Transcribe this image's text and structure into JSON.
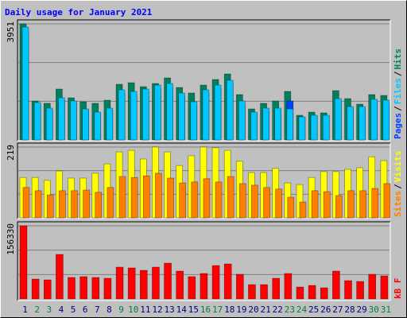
{
  "chart_data": [
    {
      "type": "bar",
      "title": "Daily usage for January 2021",
      "legend_separator": "/",
      "ylim": [
        0,
        3951
      ],
      "yticks": [
        3951
      ],
      "series": [
        {
          "name": "Hits",
          "color": "#00805c",
          "values": [
            3951,
            1326,
            1245,
            1732,
            1434,
            1299,
            1245,
            1353,
            1894,
            1948,
            1813,
            1921,
            2111,
            1786,
            1597,
            1867,
            2057,
            2246,
            1543,
            1055,
            1245,
            1326,
            1651,
            839,
            947,
            920,
            1678,
            1407,
            1218,
            1543,
            1515
          ]
        },
        {
          "name": "Files",
          "color": "#00c8ff",
          "values": [
            3843,
            1272,
            1082,
            1434,
            1326,
            1055,
            947,
            1082,
            1705,
            1651,
            1732,
            1867,
            1921,
            1597,
            1299,
            1705,
            1867,
            2030,
            1326,
            947,
            1082,
            1082,
            1055,
            785,
            839,
            839,
            1407,
            1136,
            1136,
            1380,
            1353
          ]
        },
        {
          "name": "Pages",
          "color": "#0040ff",
          "values": [
            3700,
            1200,
            1000,
            1350,
            1250,
            1000,
            900,
            1000,
            1600,
            1550,
            1650,
            1750,
            1800,
            1500,
            1200,
            1600,
            1750,
            1900,
            1250,
            900,
            1000,
            1000,
            1326,
            750,
            800,
            800,
            1300,
            1050,
            1050,
            1300,
            1250
          ]
        }
      ]
    },
    {
      "type": "bar",
      "legend_separator": "/",
      "ylim": [
        0,
        219
      ],
      "yticks": [
        219
      ],
      "series": [
        {
          "name": "Visits",
          "color": "#ffff00",
          "values": [
            125,
            125,
            116,
            145,
            123,
            123,
            138,
            167,
            204,
            209,
            182,
            219,
            204,
            162,
            192,
            219,
            217,
            209,
            175,
            140,
            140,
            153,
            108,
            103,
            125,
            143,
            143,
            150,
            155,
            189,
            177
          ]
        },
        {
          "name": "Sites",
          "color": "#ff8000",
          "values": [
            94,
            84,
            71,
            84,
            84,
            86,
            79,
            94,
            128,
            125,
            130,
            138,
            123,
            108,
            111,
            121,
            111,
            128,
            106,
            101,
            94,
            89,
            64,
            49,
            84,
            81,
            69,
            84,
            84,
            91,
            106
          ]
        }
      ]
    },
    {
      "type": "bar",
      "ylim": [
        0,
        156330
      ],
      "yticks": [
        156330
      ],
      "categories": [
        "1",
        "2",
        "3",
        "4",
        "5",
        "6",
        "7",
        "8",
        "9",
        "10",
        "11",
        "12",
        "13",
        "14",
        "15",
        "16",
        "17",
        "18",
        "19",
        "20",
        "21",
        "22",
        "23",
        "24",
        "25",
        "26",
        "27",
        "28",
        "29",
        "30",
        "31"
      ],
      "category_colors": [
        "#000080",
        "#008040",
        "#008040",
        "#000080",
        "#000080",
        "#000080",
        "#000080",
        "#000080",
        "#008040",
        "#008040",
        "#000080",
        "#000080",
        "#000080",
        "#000080",
        "#000080",
        "#008040",
        "#008040",
        "#000080",
        "#000080",
        "#000080",
        "#000080",
        "#000080",
        "#008040",
        "#008040",
        "#000080",
        "#000080",
        "#000080",
        "#000080",
        "#000080",
        "#008040",
        "#008040"
      ],
      "series": [
        {
          "name": "kB F",
          "color": "#ff0000",
          "values": [
            156330,
            42480,
            40780,
            95160,
            45880,
            47580,
            45880,
            44180,
            67970,
            66270,
            61170,
            67970,
            76470,
            59470,
            47580,
            54380,
            71370,
            74770,
            52680,
            30590,
            30590,
            44180,
            54380,
            25490,
            28890,
            23790,
            59470,
            39080,
            37380,
            52680,
            49280
          ]
        }
      ]
    }
  ]
}
